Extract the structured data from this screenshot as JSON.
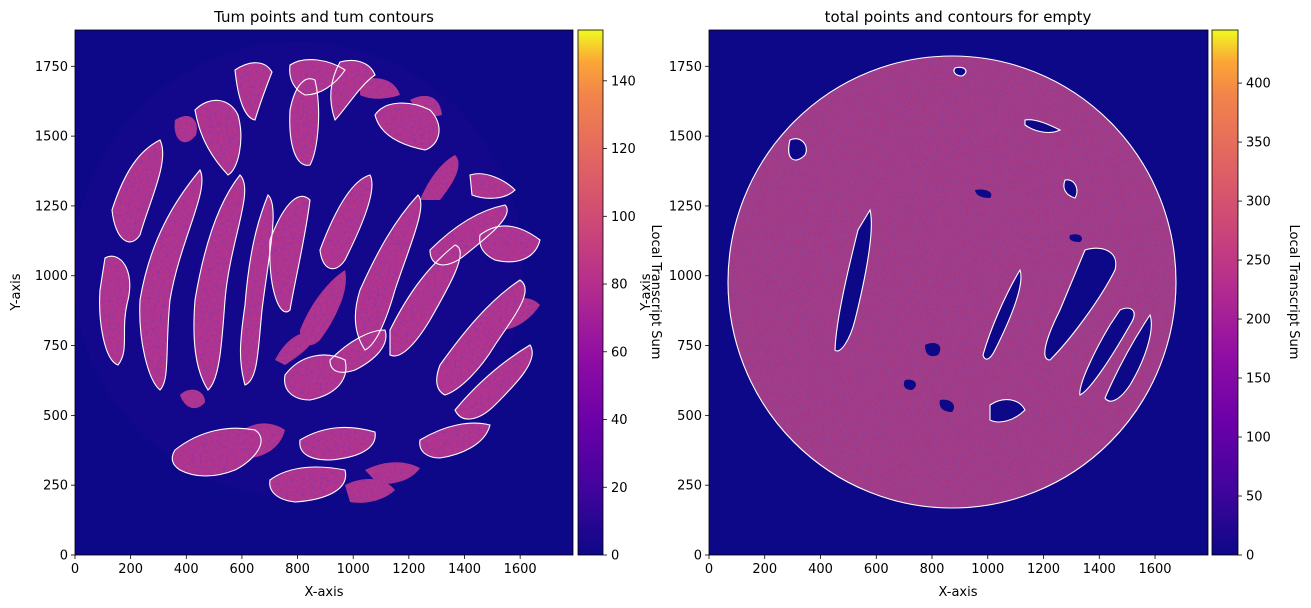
{
  "chart_data": [
    {
      "type": "heatmap",
      "title": "Tum points and tum contours",
      "xlabel": "X-axis",
      "ylabel": "Y-axis",
      "xlim": [
        0,
        1790
      ],
      "ylim": [
        0,
        1880
      ],
      "xticks": [
        0,
        200,
        400,
        600,
        800,
        1000,
        1200,
        1400,
        1600
      ],
      "yticks": [
        0,
        250,
        500,
        750,
        1000,
        1250,
        1500,
        1750
      ],
      "colormap": "plasma",
      "background_color": "#0d0887",
      "contour_color": "#ffffff",
      "circle": {
        "center": [
          1000,
          1025
        ],
        "radius_x": 810,
        "radius_y": 740
      },
      "colorbar": {
        "label": "Local Transcript Sum",
        "range": [
          0,
          155
        ],
        "ticks": [
          0,
          20,
          40,
          60,
          80,
          100,
          120,
          140
        ]
      }
    },
    {
      "type": "heatmap",
      "title": "total points and contours for empty",
      "xlabel": "X-axis",
      "ylabel": "Y-axis",
      "xlim": [
        0,
        1790
      ],
      "ylim": [
        0,
        1880
      ],
      "xticks": [
        0,
        200,
        400,
        600,
        800,
        1000,
        1200,
        1400,
        1600
      ],
      "yticks": [
        0,
        250,
        500,
        750,
        1000,
        1250,
        1500,
        1750
      ],
      "colormap": "plasma",
      "background_color": "#0d0887",
      "contour_color": "#ffffff",
      "circle": {
        "center": [
          950,
          1000
        ],
        "radius_x": 830,
        "radius_y": 770
      },
      "colorbar": {
        "label": "Local Transcript Sum",
        "range": [
          0,
          445
        ],
        "ticks": [
          0,
          50,
          100,
          150,
          200,
          250,
          300,
          350,
          400
        ]
      }
    }
  ]
}
